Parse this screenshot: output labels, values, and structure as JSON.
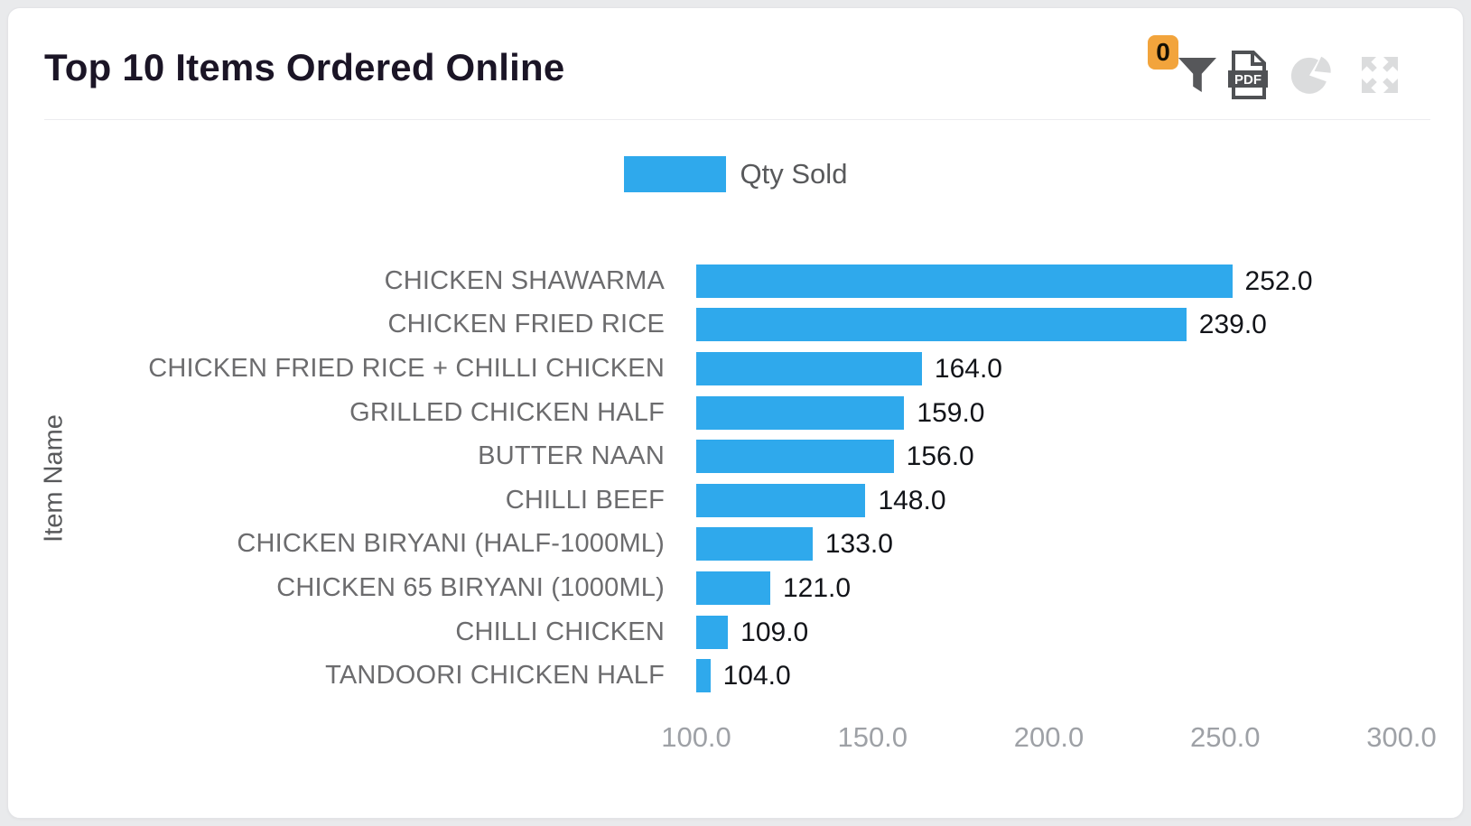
{
  "header": {
    "title": "Top 10 Items Ordered Online",
    "filter_badge": "0",
    "icons": [
      "filter-icon",
      "pdf-export-icon",
      "pie-chart-icon",
      "fullscreen-icon"
    ]
  },
  "legend": {
    "label": "Qty Sold"
  },
  "colors": {
    "bar": "#2FA9EC",
    "badge_bg": "#F2A43C",
    "icon_active": "#56575A",
    "icon_disabled": "#DBDCDD"
  },
  "chart_data": {
    "type": "bar",
    "orientation": "horizontal",
    "title": "Top 10 Items Ordered Online",
    "series_name": "Qty Sold",
    "ylabel": "Item Name",
    "xlabel": "",
    "categories": [
      "CHICKEN SHAWARMA",
      "CHICKEN FRIED RICE",
      "CHICKEN FRIED RICE + CHILLI CHICKEN",
      "GRILLED CHICKEN HALF",
      "BUTTER NAAN",
      "CHILLI BEEF",
      "CHICKEN BIRYANI (HALF-1000ML)",
      "CHICKEN 65 BIRYANI (1000ML)",
      "CHILLI CHICKEN",
      "TANDOORI CHICKEN HALF"
    ],
    "values": [
      252,
      239,
      164,
      159,
      156,
      148,
      133,
      121,
      109,
      104
    ],
    "value_labels": [
      "252.0",
      "239.0",
      "164.0",
      "159.0",
      "156.0",
      "148.0",
      "133.0",
      "121.0",
      "109.0",
      "104.0"
    ],
    "xlim": [
      100,
      300
    ],
    "xticks": [
      "100.0",
      "150.0",
      "200.0",
      "250.0",
      "300.0"
    ],
    "grid": false,
    "legend_position": "top-center",
    "bar_color": "#2FA9EC"
  }
}
